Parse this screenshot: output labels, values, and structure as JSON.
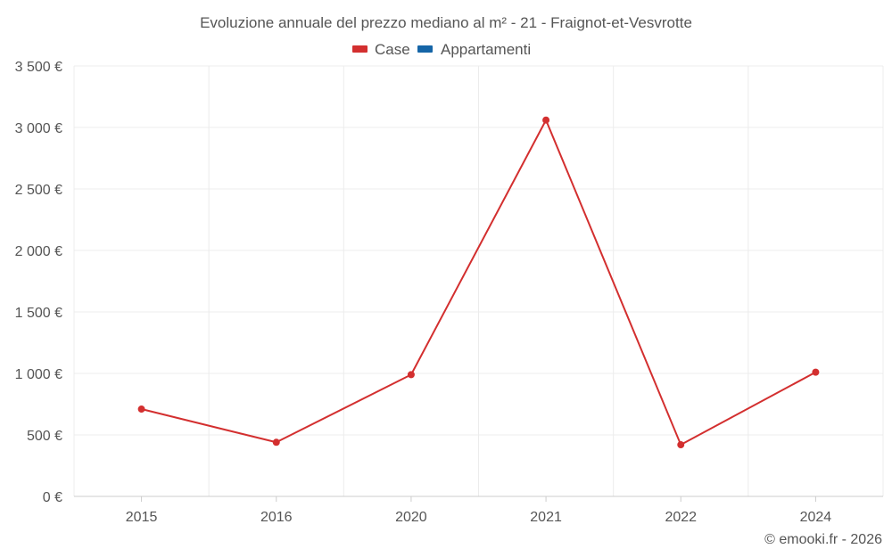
{
  "chart_data": {
    "type": "line",
    "title": "Evoluzione annuale del prezzo mediano al m² - 21 - Fraignot-et-Vesvrotte",
    "categories": [
      "2015",
      "2016",
      "2020",
      "2021",
      "2022",
      "2024"
    ],
    "series": [
      {
        "name": "Case",
        "color": "#d32f2f",
        "values": [
          710,
          440,
          990,
          3060,
          420,
          1010
        ]
      },
      {
        "name": "Appartamenti",
        "color": "#1565a7",
        "values": [
          null,
          null,
          null,
          null,
          null,
          null
        ]
      }
    ],
    "ylim": [
      0,
      3500
    ],
    "yticks": [
      0,
      500,
      1000,
      1500,
      2000,
      2500,
      3000,
      3500
    ],
    "ytick_labels": [
      "0 €",
      "500 €",
      "1 000 €",
      "1 500 €",
      "2 000 €",
      "2 500 €",
      "3 000 €",
      "3 500 €"
    ],
    "grid": true,
    "legend_position": "top-center",
    "xlabel": "",
    "ylabel": ""
  },
  "credit": "© emooki.fr - 2026"
}
